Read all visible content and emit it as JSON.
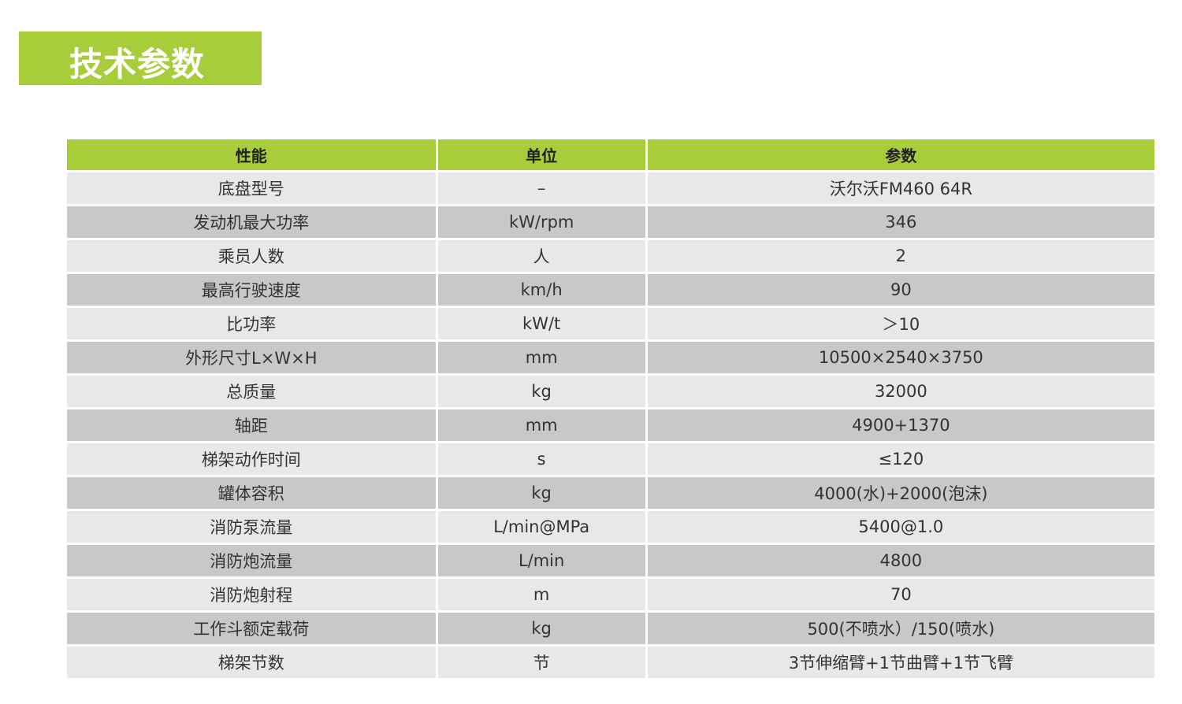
{
  "title": "技术参数",
  "colors": {
    "accent": "#a8cd3a",
    "row_light": "#e8e8ea",
    "row_dark": "#c8c8c9"
  },
  "table": {
    "headers": [
      "性能",
      "单位",
      "参数"
    ],
    "rows": [
      [
        "底盘型号",
        "–",
        "沃尔沃FM460 64R"
      ],
      [
        "发动机最大功率",
        "kW/rpm",
        "346"
      ],
      [
        "乘员人数",
        "人",
        "2"
      ],
      [
        "最高行驶速度",
        "km/h",
        "90"
      ],
      [
        "比功率",
        "kW/t",
        "＞10"
      ],
      [
        "外形尺寸L×W×H",
        "mm",
        "10500×2540×3750"
      ],
      [
        "总质量",
        "kg",
        "32000"
      ],
      [
        "轴距",
        "mm",
        "4900+1370"
      ],
      [
        "梯架动作时间",
        "s",
        "≤120"
      ],
      [
        "罐体容积",
        "kg",
        "4000(水)+2000(泡沫)"
      ],
      [
        "消防泵流量",
        "L/min@MPa",
        "5400@1.0"
      ],
      [
        "消防炮流量",
        "L/min",
        "4800"
      ],
      [
        "消防炮射程",
        "m",
        "70"
      ],
      [
        "工作斗额定载荷",
        "kg",
        "500(不喷水）/150(喷水)"
      ],
      [
        "梯架节数",
        "节",
        "3节伸缩臂+1节曲臂+1节飞臂"
      ]
    ]
  }
}
